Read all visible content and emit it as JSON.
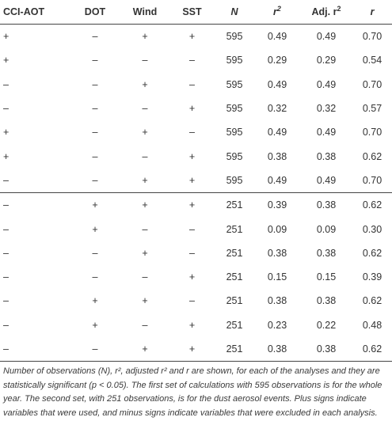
{
  "table": {
    "headers": [
      "CCI-AOT",
      "DOT",
      "Wind",
      "SST",
      "N",
      "r",
      "Adj. r",
      "r"
    ],
    "header_sup": [
      "",
      "",
      "",
      "",
      "",
      "2",
      "2",
      ""
    ],
    "groups": [
      [
        [
          "+",
          "–",
          "+",
          "+",
          "595",
          "0.49",
          "0.49",
          "0.70"
        ],
        [
          "+",
          "–",
          "–",
          "–",
          "595",
          "0.29",
          "0.29",
          "0.54"
        ],
        [
          "–",
          "–",
          "+",
          "–",
          "595",
          "0.49",
          "0.49",
          "0.70"
        ],
        [
          "–",
          "–",
          "–",
          "+",
          "595",
          "0.32",
          "0.32",
          "0.57"
        ],
        [
          "+",
          "–",
          "+",
          "–",
          "595",
          "0.49",
          "0.49",
          "0.70"
        ],
        [
          "+",
          "–",
          "–",
          "+",
          "595",
          "0.38",
          "0.38",
          "0.62"
        ],
        [
          "–",
          "–",
          "+",
          "+",
          "595",
          "0.49",
          "0.49",
          "0.70"
        ]
      ],
      [
        [
          "–",
          "+",
          "+",
          "+",
          "251",
          "0.39",
          "0.38",
          "0.62"
        ],
        [
          "–",
          "+",
          "–",
          "–",
          "251",
          "0.09",
          "0.09",
          "0.30"
        ],
        [
          "–",
          "–",
          "+",
          "–",
          "251",
          "0.38",
          "0.38",
          "0.62"
        ],
        [
          "–",
          "–",
          "–",
          "+",
          "251",
          "0.15",
          "0.15",
          "0.39"
        ],
        [
          "–",
          "+",
          "+",
          "–",
          "251",
          "0.38",
          "0.38",
          "0.62"
        ],
        [
          "–",
          "+",
          "–",
          "+",
          "251",
          "0.23",
          "0.22",
          "0.48"
        ],
        [
          "–",
          "–",
          "+",
          "+",
          "251",
          "0.38",
          "0.38",
          "0.62"
        ]
      ]
    ]
  },
  "footnote": "Number of observations (N), r², adjusted r² and r are shown, for each of the analyses and they are statistically significant (p < 0.05). The first set of calculations with 595 observations is for the whole year. The second set, with 251 observations, is for the dust aerosol events. Plus signs indicate variables that were used, and minus signs indicate variables that were excluded in each analysis."
}
